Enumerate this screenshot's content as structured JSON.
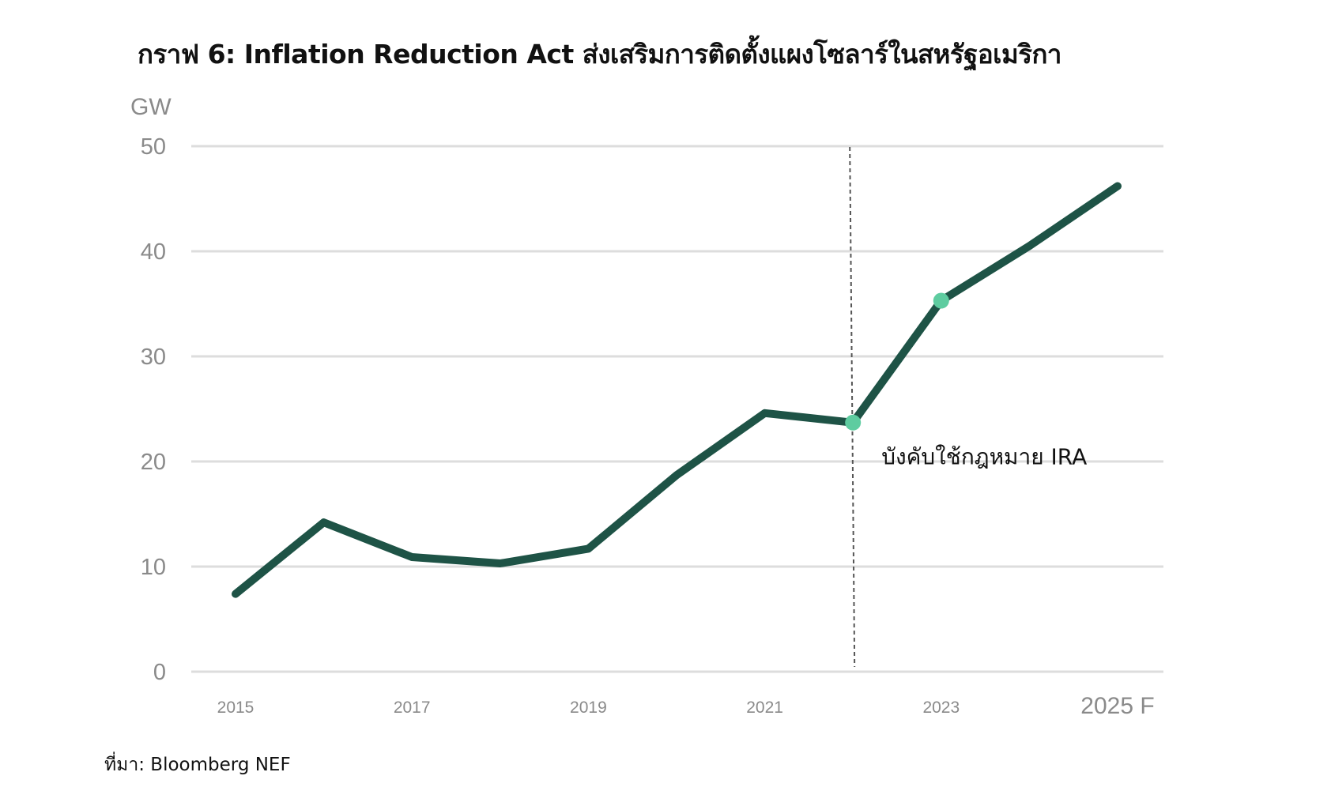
{
  "title": "กราฟ 6: Inflation Reduction Act ส่งเสริมการติดตั้งแผงโซลาร์ในสหรัฐอเมริกา",
  "source": "ที่มา: Bloomberg NEF",
  "chart_data": {
    "type": "line",
    "title": "กราฟ 6: Inflation Reduction Act ส่งเสริมการติดตั้งแผงโซลาร์ในสหรัฐอเมริกา",
    "ylabel": "GW",
    "xlabel": "",
    "ylim": [
      0,
      50
    ],
    "yticks": [
      "0",
      "10",
      "20",
      "30",
      "40",
      "50"
    ],
    "x": [
      2015,
      2016,
      2017,
      2018,
      2019,
      2020,
      2021,
      2022,
      2023,
      2024,
      2025
    ],
    "xtick_labels": [
      {
        "x": 2015,
        "label": "2015"
      },
      {
        "x": 2017,
        "label": "2017"
      },
      {
        "x": 2019,
        "label": "2019"
      },
      {
        "x": 2021,
        "label": "2021"
      },
      {
        "x": 2023,
        "label": "2023"
      },
      {
        "x": 2025,
        "label": "2025 F"
      }
    ],
    "series": [
      {
        "values": [
          7.4,
          14.2,
          10.9,
          10.3,
          11.7,
          18.7,
          24.6,
          23.7,
          35.3,
          40.5,
          46.2
        ],
        "color": "#1e5346"
      }
    ],
    "highlight_points": [
      {
        "x": 2022,
        "y": 23.7,
        "color": "#5ecca0"
      },
      {
        "x": 2023,
        "y": 35.3,
        "color": "#5ecca0"
      }
    ],
    "vline": {
      "x": 2022,
      "style": "dashed",
      "color": "#555555"
    },
    "annotation": {
      "text": "บังคับใช้กฎหมาย IRA",
      "x": 2022,
      "y": 20.5
    },
    "grid": true,
    "legend": "none"
  }
}
